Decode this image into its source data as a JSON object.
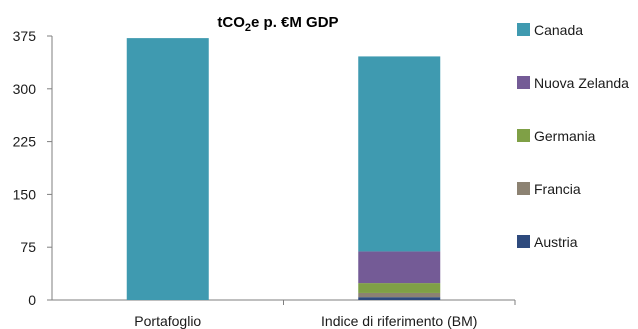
{
  "chart_data": {
    "type": "bar",
    "stacked": true,
    "title_main": "tCO",
    "title_sub": "2",
    "title_rest": "e p. €M GDP",
    "categories": [
      "Portafoglio",
      "Indice di riferimento (BM)"
    ],
    "ylim": [
      0,
      375
    ],
    "yticks": [
      "0",
      "75",
      "150",
      "225",
      "300",
      "375"
    ],
    "grid": false,
    "legend_position": "right",
    "series": [
      {
        "name": "Austria",
        "color": "#2e4a7d",
        "values": [
          0,
          4
        ]
      },
      {
        "name": "Francia",
        "color": "#8c8272",
        "values": [
          0,
          6
        ]
      },
      {
        "name": "Germania",
        "color": "#7fa046",
        "values": [
          0,
          14
        ]
      },
      {
        "name": "Nuova Zelanda",
        "color": "#745b96",
        "values": [
          0,
          45
        ]
      },
      {
        "name": "Canada",
        "color": "#3f9ab0",
        "values": [
          372,
          277
        ]
      }
    ]
  }
}
